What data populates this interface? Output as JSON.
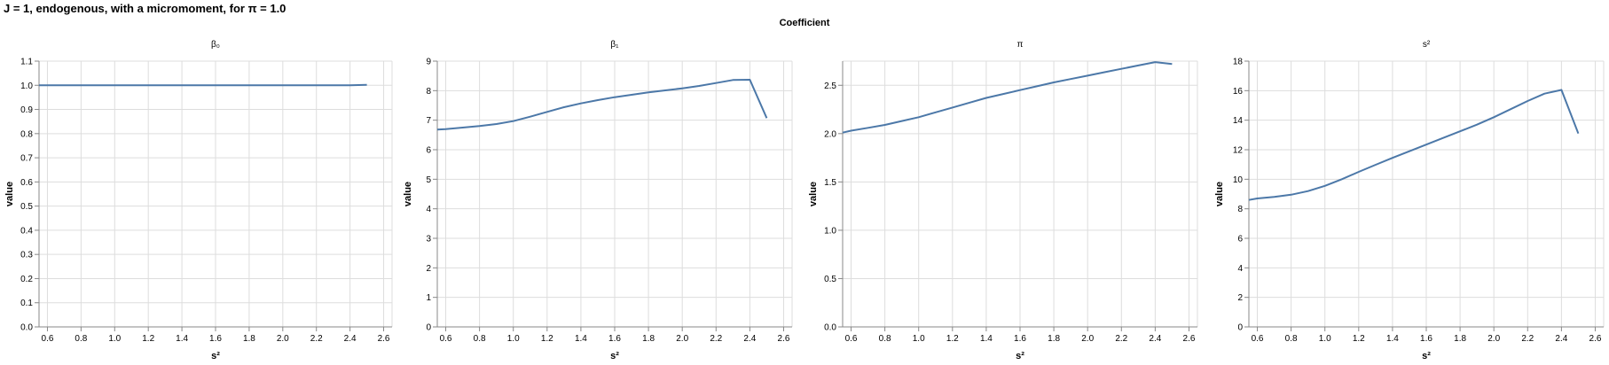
{
  "title": "J = 1, endogenous, with a micromoment,  for π = 1.0",
  "facet_header": "Coefficient",
  "colors": {
    "line": "#4c78a8",
    "grid": "#dddddd",
    "axis": "#888888"
  },
  "chart_data": [
    {
      "type": "line",
      "title": "β₀",
      "xlabel": "s²",
      "ylabel": "value",
      "xlim": [
        0.55,
        2.65
      ],
      "ylim": [
        0,
        1.1
      ],
      "xticks": [
        0.6,
        0.8,
        1.0,
        1.2,
        1.4,
        1.6,
        1.8,
        2.0,
        2.2,
        2.4,
        2.6
      ],
      "xtick_labels": [
        "0.6",
        "0.8",
        "1.0",
        "1.2",
        "1.4",
        "1.6",
        "1.8",
        "2.0",
        "2.2",
        "2.4",
        "2.6"
      ],
      "yticks": [
        0,
        0.1,
        0.2,
        0.3,
        0.4,
        0.5,
        0.6,
        0.7,
        0.8,
        0.9,
        1.0,
        1.1
      ],
      "ytick_labels": [
        "0.0",
        "0.1",
        "0.2",
        "0.3",
        "0.4",
        "0.5",
        "0.6",
        "0.7",
        "0.8",
        "0.9",
        "1.0",
        "1.1"
      ],
      "grid": true,
      "x": [
        0.55,
        0.6,
        0.7,
        0.8,
        0.9,
        1.0,
        1.1,
        1.2,
        1.3,
        1.4,
        1.5,
        1.6,
        1.7,
        1.8,
        1.9,
        2.0,
        2.1,
        2.2,
        2.3,
        2.4,
        2.5
      ],
      "values": [
        1.0,
        1.0,
        1.0,
        1.0,
        1.0,
        1.0,
        1.0,
        1.0,
        1.0,
        1.0,
        1.0,
        1.0,
        1.0,
        1.0,
        1.0,
        1.0,
        1.0,
        1.0,
        1.0,
        1.0,
        1.002
      ]
    },
    {
      "type": "line",
      "title": "β₁",
      "xlabel": "s²",
      "ylabel": "value",
      "xlim": [
        0.55,
        2.65
      ],
      "ylim": [
        0,
        9
      ],
      "xticks": [
        0.6,
        0.8,
        1.0,
        1.2,
        1.4,
        1.6,
        1.8,
        2.0,
        2.2,
        2.4,
        2.6
      ],
      "xtick_labels": [
        "0.6",
        "0.8",
        "1.0",
        "1.2",
        "1.4",
        "1.6",
        "1.8",
        "2.0",
        "2.2",
        "2.4",
        "2.6"
      ],
      "yticks": [
        0,
        1,
        2,
        3,
        4,
        5,
        6,
        7,
        8,
        9
      ],
      "ytick_labels": [
        "0",
        "1",
        "2",
        "3",
        "4",
        "5",
        "6",
        "7",
        "8",
        "9"
      ],
      "grid": true,
      "x": [
        0.55,
        0.6,
        0.7,
        0.8,
        0.9,
        1.0,
        1.1,
        1.2,
        1.3,
        1.4,
        1.5,
        1.6,
        1.7,
        1.8,
        1.9,
        2.0,
        2.1,
        2.2,
        2.3,
        2.4,
        2.5
      ],
      "values": [
        6.68,
        6.7,
        6.75,
        6.8,
        6.87,
        6.97,
        7.12,
        7.28,
        7.44,
        7.57,
        7.68,
        7.78,
        7.86,
        7.94,
        8.01,
        8.08,
        8.16,
        8.26,
        8.36,
        8.37,
        7.07
      ]
    },
    {
      "type": "line",
      "title": "π",
      "xlabel": "s²",
      "ylabel": "value",
      "xlim": [
        0.55,
        2.65
      ],
      "ylim": [
        0,
        2.75
      ],
      "xticks": [
        0.6,
        0.8,
        1.0,
        1.2,
        1.4,
        1.6,
        1.8,
        2.0,
        2.2,
        2.4,
        2.6
      ],
      "xtick_labels": [
        "0.6",
        "0.8",
        "1.0",
        "1.2",
        "1.4",
        "1.6",
        "1.8",
        "2.0",
        "2.2",
        "2.4",
        "2.6"
      ],
      "yticks": [
        0,
        0.5,
        1.0,
        1.5,
        2.0,
        2.5
      ],
      "ytick_labels": [
        "0.0",
        "0.5",
        "1.0",
        "1.5",
        "2.0",
        "2.5"
      ],
      "grid": true,
      "x": [
        0.55,
        0.6,
        0.7,
        0.8,
        0.9,
        1.0,
        1.1,
        1.2,
        1.3,
        1.4,
        1.5,
        1.6,
        1.7,
        1.8,
        1.9,
        2.0,
        2.1,
        2.2,
        2.3,
        2.4,
        2.5
      ],
      "values": [
        2.01,
        2.03,
        2.06,
        2.09,
        2.13,
        2.17,
        2.22,
        2.27,
        2.32,
        2.37,
        2.41,
        2.45,
        2.49,
        2.53,
        2.565,
        2.6,
        2.635,
        2.67,
        2.705,
        2.74,
        2.72
      ]
    },
    {
      "type": "line",
      "title": "s²",
      "xlabel": "s²",
      "ylabel": "value",
      "xlim": [
        0.55,
        2.65
      ],
      "ylim": [
        0,
        18
      ],
      "xticks": [
        0.6,
        0.8,
        1.0,
        1.2,
        1.4,
        1.6,
        1.8,
        2.0,
        2.2,
        2.4,
        2.6
      ],
      "xtick_labels": [
        "0.6",
        "0.8",
        "1.0",
        "1.2",
        "1.4",
        "1.6",
        "1.8",
        "2.0",
        "2.2",
        "2.4",
        "2.6"
      ],
      "yticks": [
        0,
        2,
        4,
        6,
        8,
        10,
        12,
        14,
        16,
        18
      ],
      "ytick_labels": [
        "0",
        "2",
        "4",
        "6",
        "8",
        "10",
        "12",
        "14",
        "16",
        "18"
      ],
      "grid": true,
      "x": [
        0.55,
        0.6,
        0.7,
        0.8,
        0.9,
        1.0,
        1.1,
        1.2,
        1.3,
        1.4,
        1.5,
        1.6,
        1.7,
        1.8,
        1.9,
        2.0,
        2.1,
        2.2,
        2.3,
        2.4,
        2.5
      ],
      "values": [
        8.6,
        8.7,
        8.8,
        8.95,
        9.2,
        9.55,
        10.0,
        10.5,
        10.98,
        11.45,
        11.9,
        12.35,
        12.8,
        13.25,
        13.7,
        14.2,
        14.75,
        15.3,
        15.8,
        16.05,
        13.1
      ]
    }
  ]
}
